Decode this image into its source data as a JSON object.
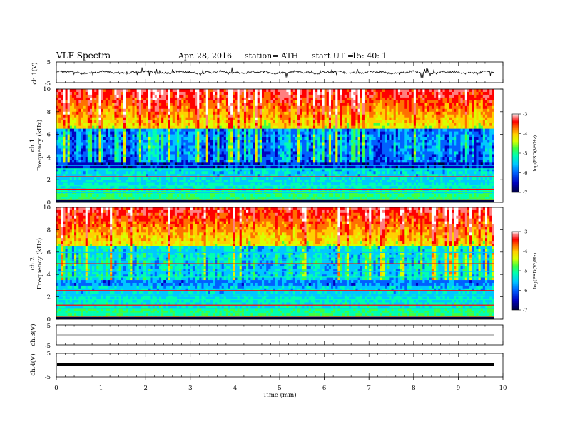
{
  "header": {
    "title": "VLF Spectra",
    "date": "Apr. 28, 2016",
    "station": "station= ATH",
    "start": "start UT =",
    "start_time": "15: 40: 1"
  },
  "chart_data": [
    {
      "type": "line",
      "ylabel": "ch.1(V)",
      "yticks": [
        "5",
        "-5"
      ],
      "ylim": [
        -5,
        5
      ],
      "xlim": [
        0,
        10
      ],
      "note": "noisy waveform near 0 V with spikes"
    },
    {
      "type": "heatmap",
      "ylabel_channel": "ch.1",
      "ylabel": "Frequency (kHz)",
      "yticks": [
        "0",
        "2",
        "4",
        "6",
        "8",
        "10"
      ],
      "ylim": [
        0,
        10
      ],
      "xlim": [
        0,
        9.8
      ],
      "colorbar": {
        "label": "log(PSD(V²/Hz)",
        "ticks": [
          "-3",
          "-4",
          "-5",
          "-6",
          "-7"
        ],
        "range": [
          -7,
          -3
        ]
      }
    },
    {
      "type": "heatmap",
      "ylabel_channel": "ch.2",
      "ylabel": "Frequency (kHz)",
      "yticks": [
        "0",
        "2",
        "4",
        "6",
        "8",
        "10"
      ],
      "ylim": [
        0,
        10
      ],
      "xlim": [
        0,
        9.8
      ],
      "colorbar": {
        "label": "log(PSD(V²/Hz)",
        "ticks": [
          "-3",
          "-4",
          "-5",
          "-6",
          "-7"
        ],
        "range": [
          -7,
          -3
        ]
      }
    },
    {
      "type": "line",
      "ylabel": "ch.3(V)",
      "yticks": [
        "5",
        "-5"
      ],
      "ylim": [
        -5,
        5
      ],
      "xlim": [
        0,
        10
      ],
      "note": "flat line at 0 V"
    },
    {
      "type": "line",
      "ylabel": "ch.4(V)",
      "yticks": [
        "5",
        "-5"
      ],
      "ylim": [
        -5,
        5
      ],
      "xlim": [
        0,
        10
      ],
      "note": "thick band at about 0 V"
    }
  ],
  "xaxis": {
    "label": "Time (min)",
    "ticks": [
      "0",
      "1",
      "2",
      "3",
      "4",
      "5",
      "6",
      "7",
      "8",
      "9",
      "10"
    ]
  },
  "colors": {
    "colormap": [
      "#000040",
      "#0000c0",
      "#0060ff",
      "#00c8ff",
      "#00ffb0",
      "#40ff40",
      "#d8ff00",
      "#ffd000",
      "#ff7000",
      "#ff0000",
      "#ff8080",
      "#ffffff"
    ]
  }
}
